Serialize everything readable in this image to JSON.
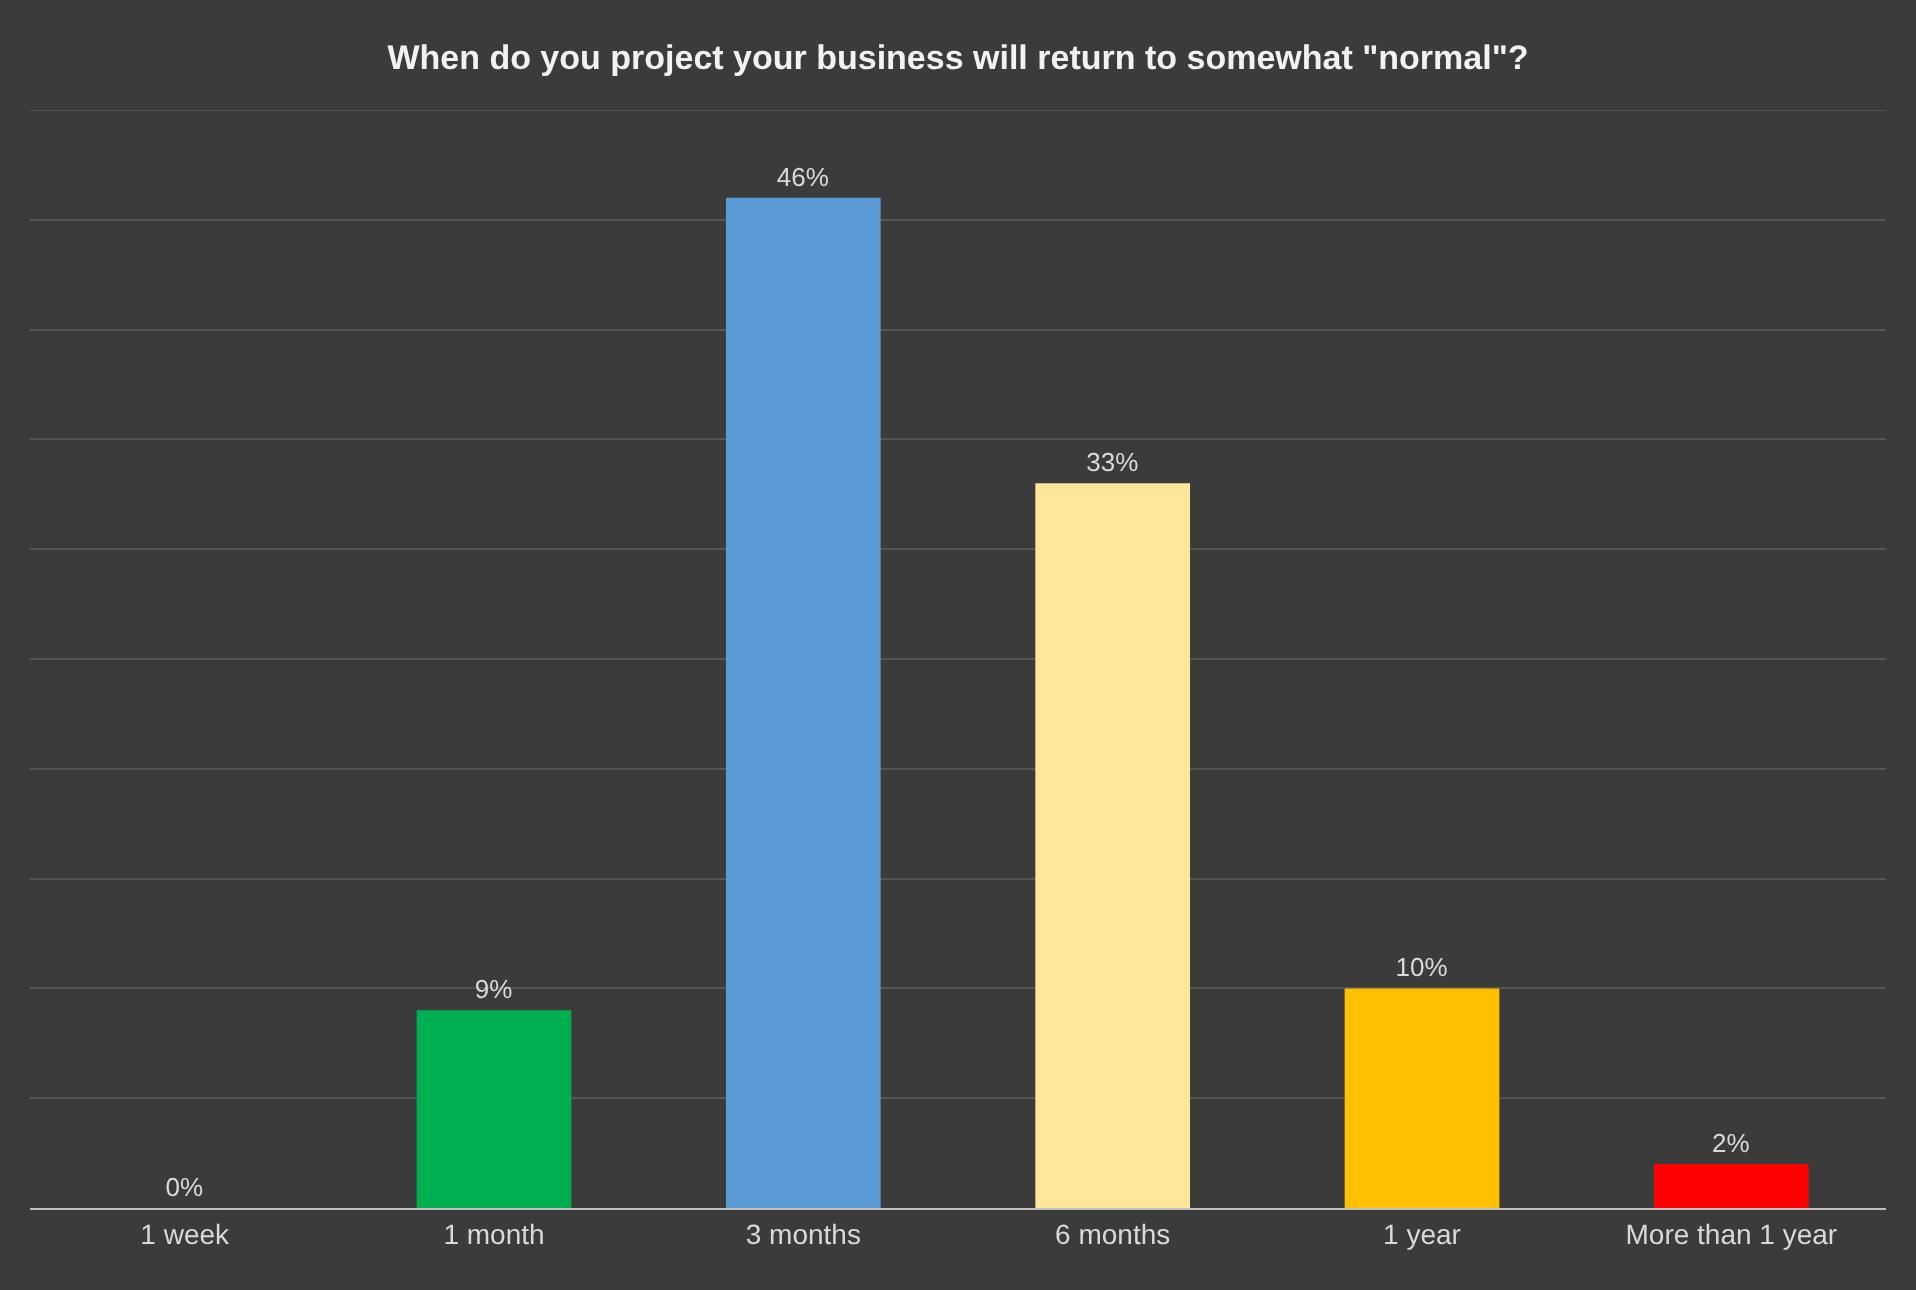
{
  "chart_data": {
    "type": "bar",
    "title": "When do you project your business will return to somewhat \"normal\"?",
    "categories": [
      "1 week",
      "1 month",
      "3 months",
      "6 months",
      "1 year",
      "More than 1 year"
    ],
    "values": [
      0,
      9,
      46,
      33,
      10,
      2
    ],
    "colors": [
      "#a5a5a5",
      "#00b050",
      "#5b9bd5",
      "#ffe699",
      "#ffc000",
      "#ff0000"
    ],
    "value_labels": [
      "0%",
      "9%",
      "46%",
      "33%",
      "10%",
      "2%"
    ],
    "ylim": [
      0,
      50
    ],
    "yticks": [
      {
        "value": 0,
        "label": null
      },
      {
        "value": 5,
        "label": null
      },
      {
        "value": 10,
        "label": null
      },
      {
        "value": 15,
        "label": null
      },
      {
        "value": 20,
        "label": null
      },
      {
        "value": 25,
        "label": null
      },
      {
        "value": 30,
        "label": null
      },
      {
        "value": 35,
        "label": null
      },
      {
        "value": 40,
        "label": null
      },
      {
        "value": 45,
        "label": null
      },
      {
        "value": 50,
        "label": null
      }
    ],
    "grid": "y",
    "tick_labels": "x",
    "legend": false
  }
}
